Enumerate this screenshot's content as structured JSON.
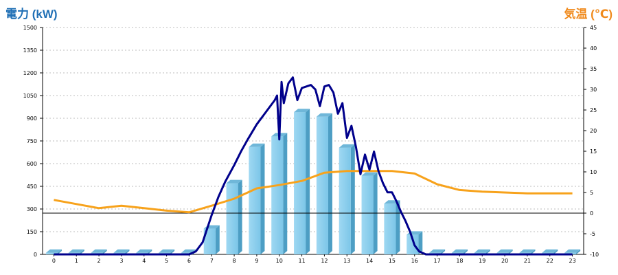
{
  "chart_data": {
    "type": "bar+line",
    "left_axis_label": "電力 (kW)",
    "right_axis_label": "気温 (℃)",
    "categories": [
      "0",
      "1",
      "2",
      "3",
      "4",
      "5",
      "6",
      "7",
      "8",
      "9",
      "10",
      "11",
      "12",
      "13",
      "14",
      "15",
      "16",
      "17",
      "18",
      "19",
      "20",
      "21",
      "22",
      "23"
    ],
    "left_ylim": [
      0,
      1500
    ],
    "left_ticks": [
      0,
      150,
      300,
      450,
      600,
      750,
      900,
      1050,
      1200,
      1350,
      1500
    ],
    "right_ylim": [
      -10,
      45
    ],
    "right_ticks": [
      -10,
      -5,
      0,
      5,
      10,
      15,
      20,
      25,
      30,
      35,
      40,
      45
    ],
    "grid": true,
    "bar_series": {
      "values": [
        10,
        10,
        10,
        10,
        10,
        10,
        10,
        170,
        470,
        710,
        780,
        940,
        910,
        705,
        520,
        335,
        130,
        10,
        10,
        10,
        10,
        10,
        10,
        10
      ],
      "color": "#87ceeb"
    },
    "power_line": {
      "color": "#00008b",
      "x": [
        0,
        1,
        2,
        3,
        4,
        5,
        6,
        6.3,
        6.6,
        7,
        7.3,
        7.6,
        8,
        8.3,
        8.6,
        9,
        9.3,
        9.6,
        9.8,
        9.9,
        10,
        10.1,
        10.2,
        10.4,
        10.6,
        10.8,
        11,
        11.2,
        11.4,
        11.6,
        11.8,
        12,
        12.2,
        12.4,
        12.6,
        12.8,
        13,
        13.2,
        13.4,
        13.6,
        13.8,
        14,
        14.2,
        14.4,
        14.6,
        14.8,
        15,
        15.2,
        15.4,
        15.6,
        15.8,
        16,
        16.2,
        16.5,
        17,
        18,
        19,
        20,
        21,
        22,
        23
      ],
      "y": [
        0,
        0,
        0,
        0,
        0,
        0,
        0,
        20,
        80,
        260,
        380,
        480,
        590,
        680,
        760,
        860,
        920,
        980,
        1020,
        1050,
        760,
        1140,
        1000,
        1130,
        1170,
        1020,
        1100,
        1110,
        1120,
        1090,
        980,
        1110,
        1120,
        1070,
        930,
        1000,
        770,
        850,
        710,
        530,
        660,
        560,
        680,
        550,
        470,
        410,
        410,
        350,
        280,
        220,
        150,
        60,
        20,
        0,
        0,
        0,
        0,
        0,
        0,
        0,
        0
      ]
    },
    "temperature_line": {
      "color": "#f7a21b",
      "x": [
        0,
        1,
        2,
        3,
        4,
        5,
        6,
        7,
        8,
        9,
        10,
        11,
        12,
        13,
        14,
        15,
        16,
        17,
        18,
        19,
        20,
        21,
        22,
        23
      ],
      "y": [
        3.2,
        2.2,
        1.2,
        1.8,
        1.2,
        0.6,
        0.2,
        1.8,
        3.5,
        6,
        6.8,
        7.8,
        9.8,
        10.2,
        10.2,
        10.2,
        9.6,
        7,
        5.6,
        5.2,
        5,
        4.8,
        4.8,
        4.8
      ]
    },
    "reference_line_right_axis": 0
  }
}
